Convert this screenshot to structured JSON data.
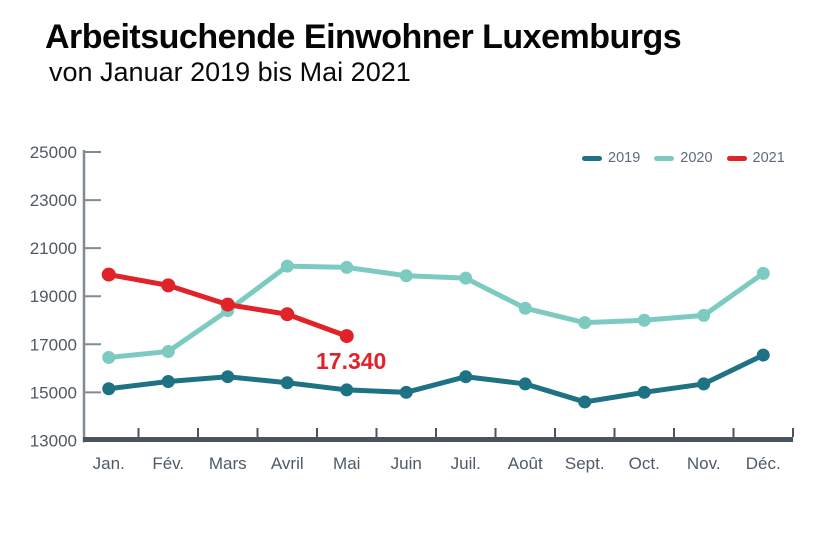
{
  "header": {
    "title": "Arbeitsuchende Einwohner Luxemburgs",
    "subtitle": "von Januar 2019 bis Mai 2021"
  },
  "chart_data": {
    "type": "line",
    "title": "Arbeitsuchende Einwohner Luxemburgs",
    "subtitle": "von Januar 2019 bis Mai 2021",
    "categories": [
      "Jan.",
      "Fév.",
      "Mars",
      "Avril",
      "Mai",
      "Juin",
      "Juil.",
      "Août",
      "Sept.",
      "Oct.",
      "Nov.",
      "Déc."
    ],
    "series": [
      {
        "name": "2019",
        "color": "#1d7284",
        "values": [
          15150,
          15450,
          15650,
          15400,
          15100,
          15000,
          15650,
          15350,
          14600,
          15000,
          15350,
          16550
        ]
      },
      {
        "name": "2020",
        "color": "#7dcbc0",
        "values": [
          16450,
          16700,
          18400,
          20250,
          20200,
          19850,
          19750,
          18500,
          17900,
          18000,
          18200,
          19950
        ]
      },
      {
        "name": "2021",
        "color": "#e02329",
        "values": [
          19900,
          19450,
          18650,
          18250,
          17340
        ]
      }
    ],
    "ylim": [
      13000,
      25000
    ],
    "y_ticks": [
      25000,
      23000,
      21000,
      19000,
      17000,
      15000,
      13000
    ],
    "grid": false,
    "legend_position": "top-right",
    "annotation": {
      "text": "17.340",
      "series": "2021",
      "category": "Mai",
      "value": 17340
    }
  },
  "colors": {
    "axis_text": "#4e5a68",
    "y_axis_line": "#828b95",
    "x_axis_bar": "#4a545f",
    "legend_text": "#5d6b7a",
    "annotation": "#e02329",
    "background": "#ffffff"
  }
}
